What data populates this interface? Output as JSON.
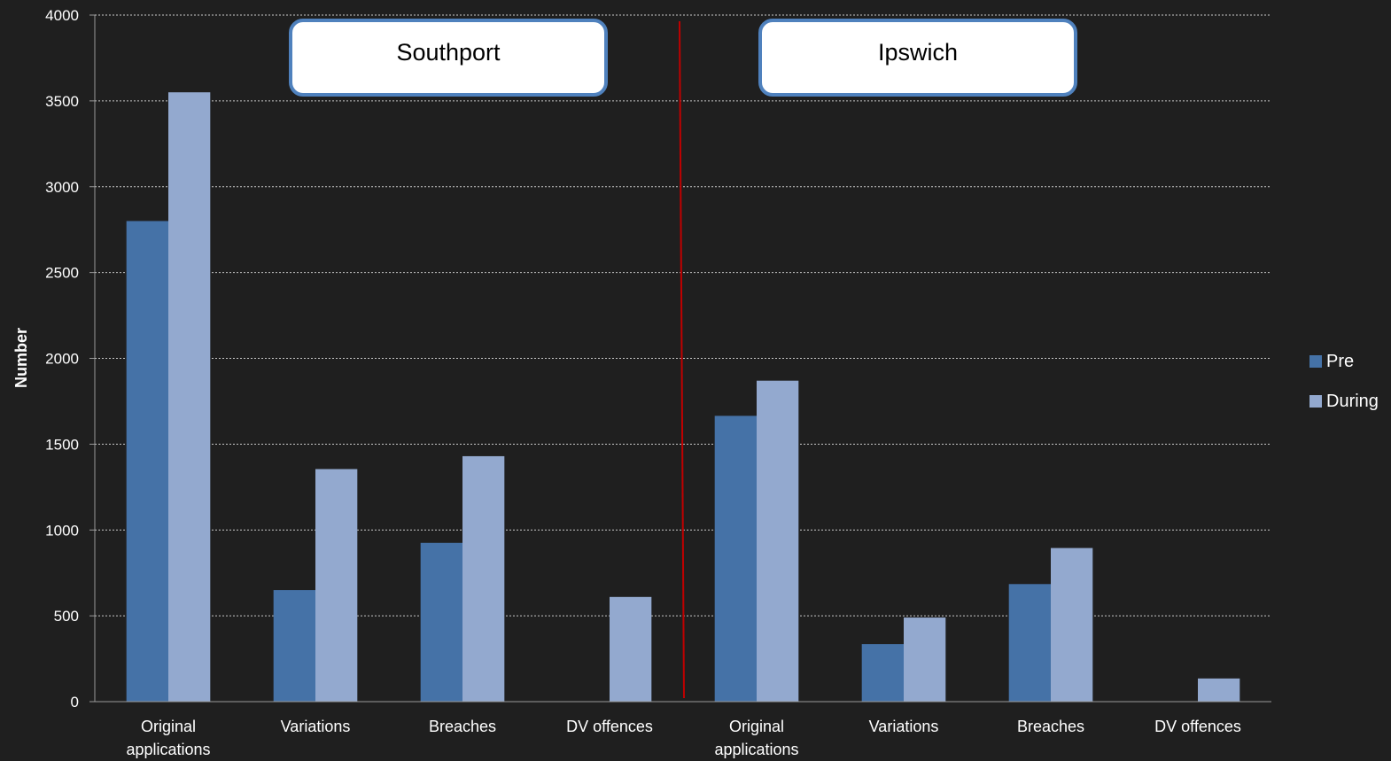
{
  "chart_data": {
    "type": "bar",
    "ylabel": "Number",
    "xlabel": "",
    "ylim": [
      0,
      4000
    ],
    "yticks": [
      0,
      500,
      1000,
      1500,
      2000,
      2500,
      3000,
      3500,
      4000
    ],
    "grid": true,
    "legend_position": "right",
    "categories": [
      [
        "Original",
        "applications"
      ],
      [
        "Variations"
      ],
      [
        "Breaches"
      ],
      [
        "DV offences"
      ],
      [
        "Original",
        "applications"
      ],
      [
        "Variations"
      ],
      [
        "Breaches"
      ],
      [
        "DV offences"
      ]
    ],
    "series": [
      {
        "name": "Pre",
        "color": "#4572a7",
        "values": [
          2800,
          650,
          925,
          0,
          1665,
          335,
          685,
          0
        ]
      },
      {
        "name": "During",
        "color": "#93a9cf",
        "values": [
          3550,
          1355,
          1430,
          610,
          1870,
          490,
          895,
          135
        ]
      }
    ],
    "groups": [
      {
        "label": "Southport",
        "categories": [
          0,
          1,
          2,
          3
        ]
      },
      {
        "label": "Ipswich",
        "categories": [
          4,
          5,
          6,
          7
        ]
      }
    ],
    "separator_color": "#c00000"
  }
}
